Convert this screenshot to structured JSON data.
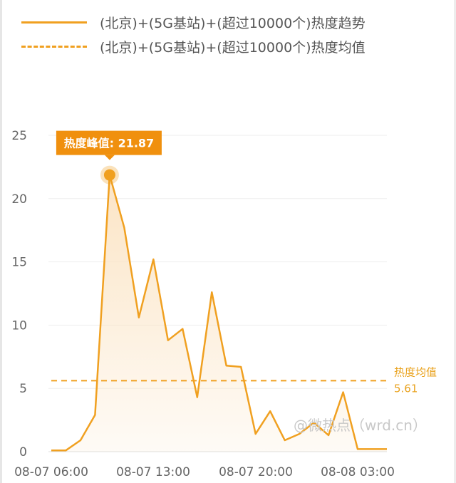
{
  "chart_data": {
    "type": "area",
    "legend": [
      {
        "label": "(北京)+(5G基站)+(超过10000个)热度趋势",
        "style": "solid"
      },
      {
        "label": "(北京)+(5G基站)+(超过10000个)热度均值",
        "style": "dashed"
      }
    ],
    "x_tick_labels": [
      "08-07 06:00",
      "08-07 13:00",
      "08-07 20:00",
      "08-08 03:00"
    ],
    "y_ticks": [
      0,
      5,
      10,
      15,
      20,
      25
    ],
    "ylim": [
      0,
      25
    ],
    "series": [
      {
        "values": [
          0.1,
          0.1,
          0.9,
          2.9,
          21.87,
          17.7,
          10.6,
          15.2,
          8.8,
          9.7,
          4.3,
          12.6,
          6.8,
          6.7,
          1.4,
          3.2,
          0.9,
          1.4,
          2.3,
          1.3,
          4.7,
          0.2,
          0.2,
          0.2
        ]
      }
    ],
    "average": {
      "label": "热度均值",
      "value": "5.61",
      "numeric": 5.61
    },
    "peak": {
      "label": "热度峰值: 21.87",
      "value": 21.87,
      "index": 4
    },
    "watermark": "@微热点（wrd.cn）",
    "colors": {
      "line": "#f0a020",
      "fill": "#fbe3c2",
      "badge": "#f0900e",
      "grid": "#eeeeee"
    }
  }
}
